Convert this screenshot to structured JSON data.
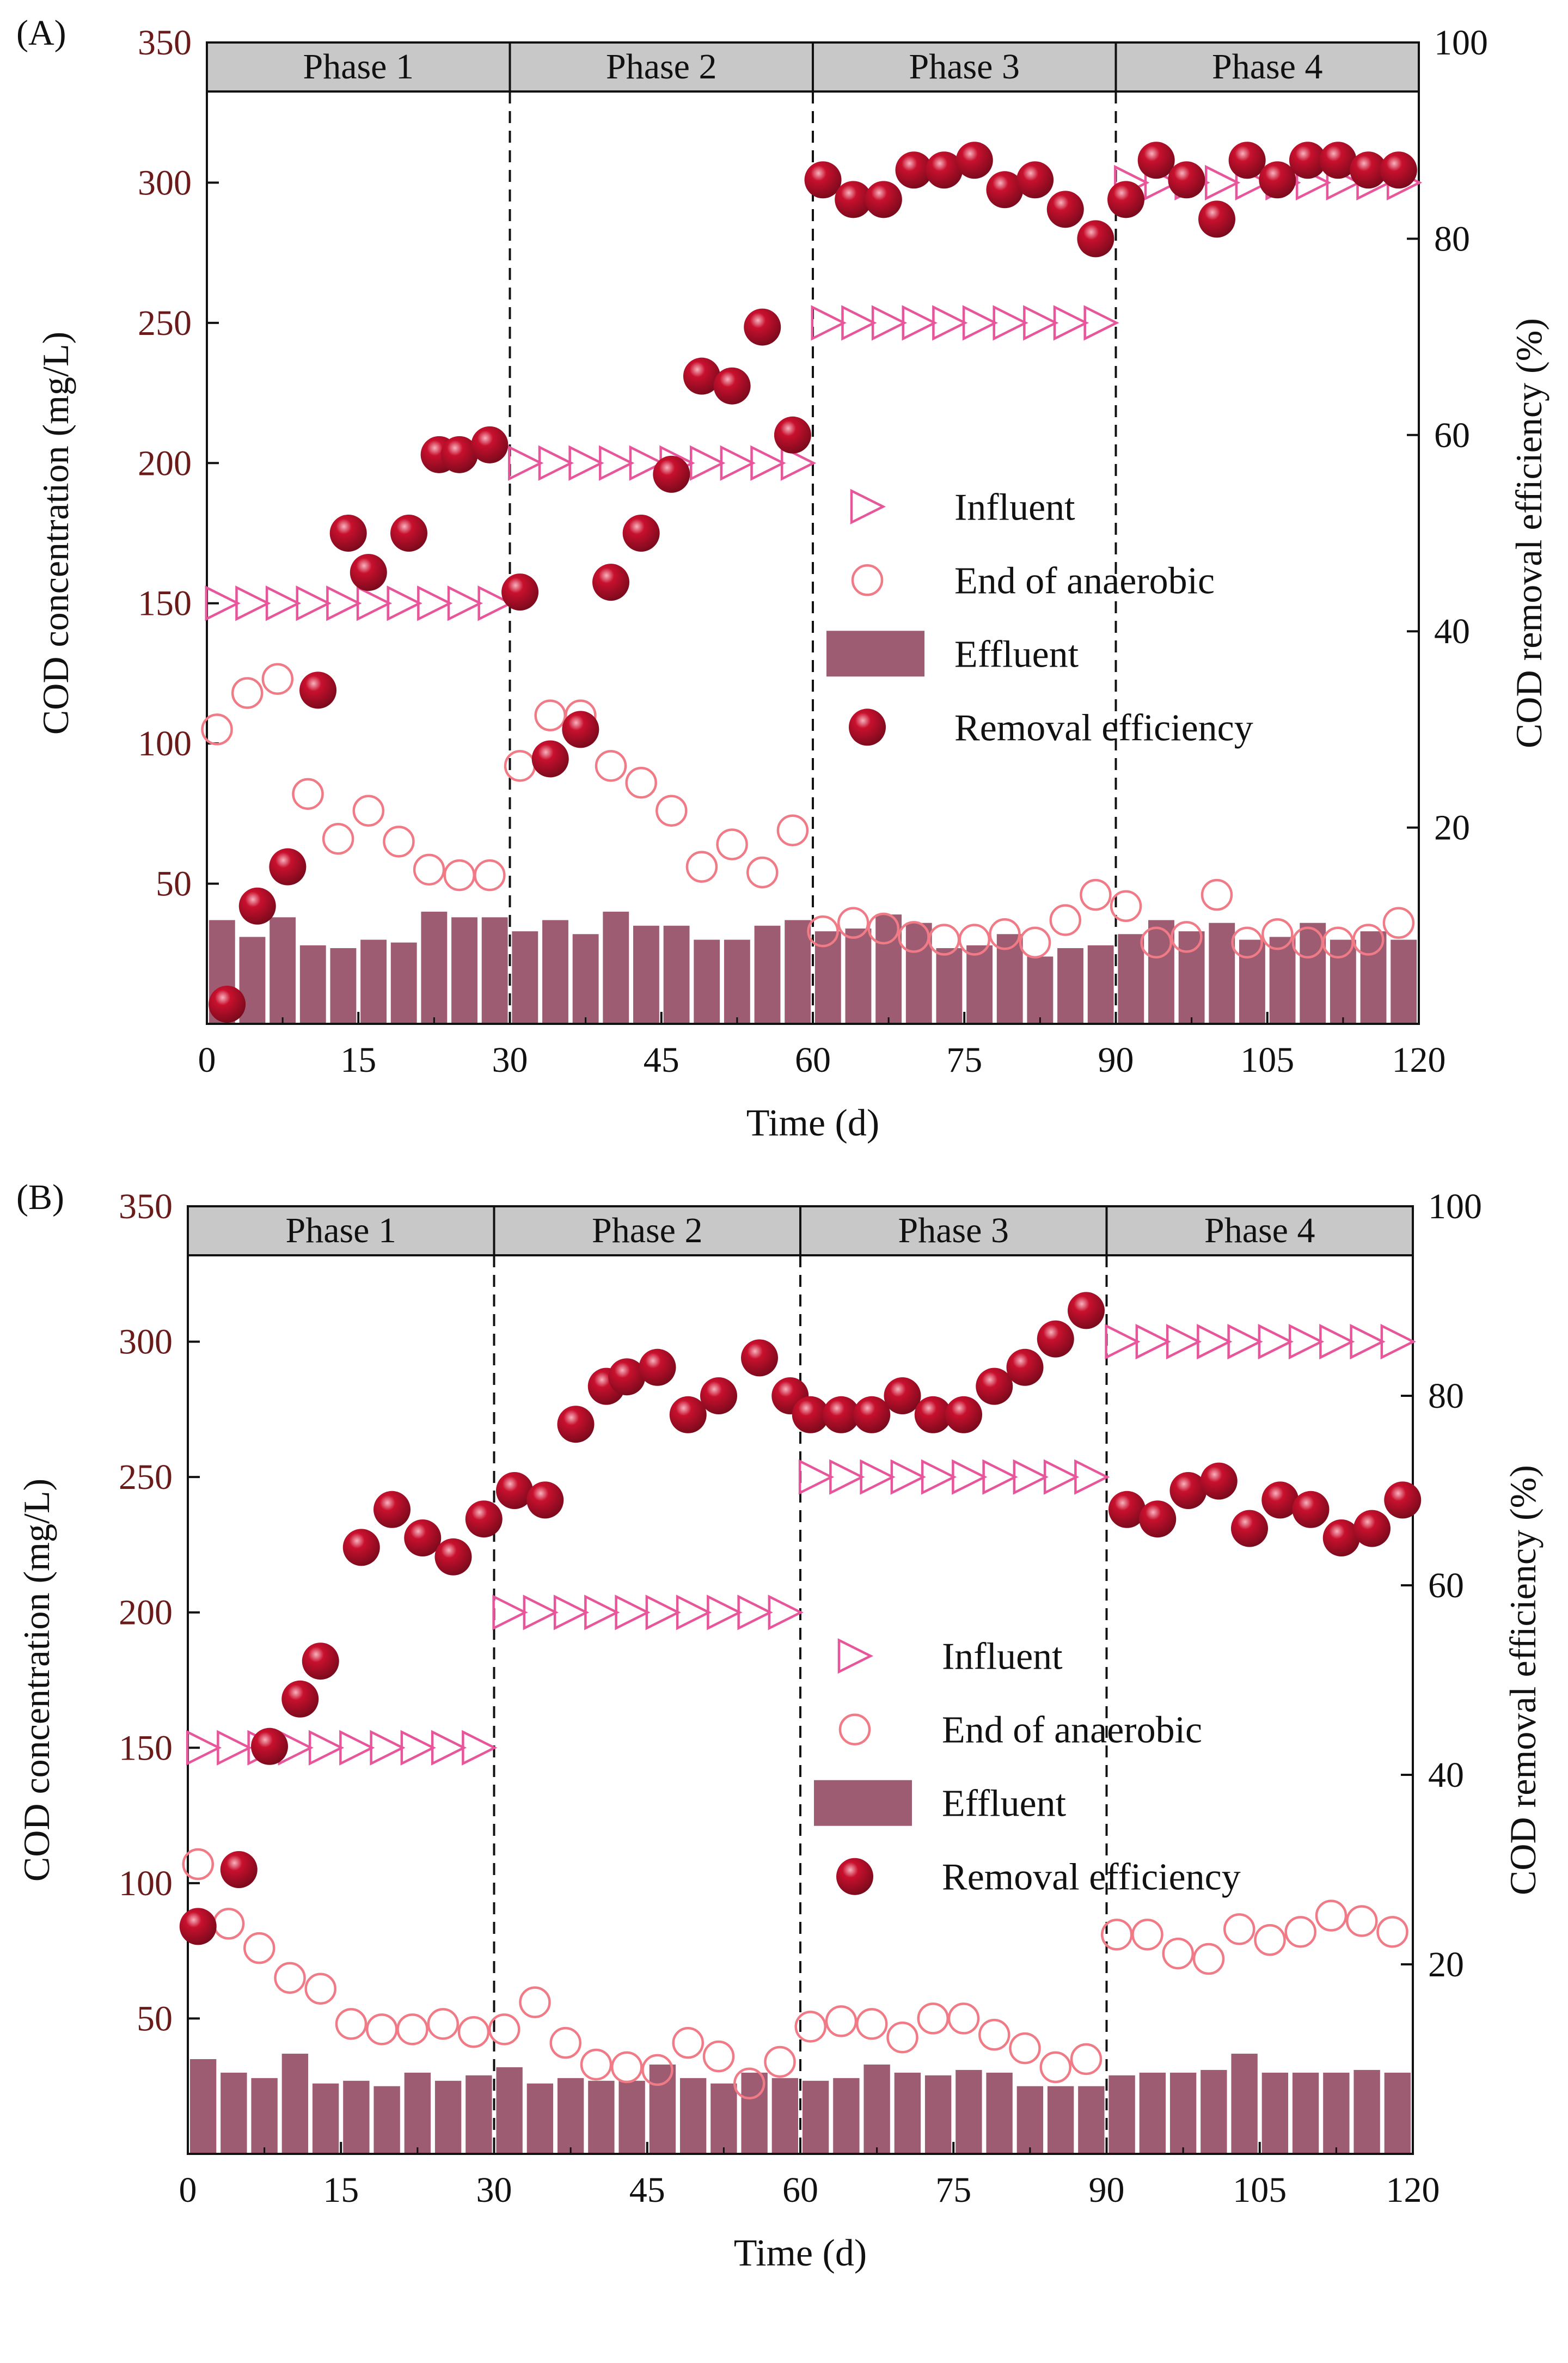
{
  "colors": {
    "influent": "#e8559a",
    "anaerobic": "#f07a86",
    "effluent": "#9e5c72",
    "removal": "#c8102e",
    "removal_highlight": "#f7b3be",
    "phase_bar": "#c8c8c8",
    "left_tick_text": "#6b1a1a"
  },
  "chart_data": [
    {
      "panel_label": "(A)",
      "type": "mixed",
      "xlabel": "Time (d)",
      "ylabel_left": "COD concentration (mg/L)",
      "ylabel_right": "COD removal efficiency (%)",
      "xlim": [
        0,
        120
      ],
      "ylim_left": [
        0,
        350
      ],
      "ylim_right": [
        0,
        100
      ],
      "xticks": [
        0,
        15,
        30,
        45,
        60,
        75,
        90,
        105,
        120
      ],
      "yticks_left": [
        50,
        100,
        150,
        200,
        250,
        300,
        350
      ],
      "yticks_right": [
        20,
        40,
        60,
        80,
        100
      ],
      "phases": [
        "Phase 1",
        "Phase 2",
        "Phase 3",
        "Phase 4"
      ],
      "phase_bounds": [
        0,
        30,
        60,
        90,
        120
      ],
      "legend": [
        "Influent",
        "End of anaerobic",
        "Effluent",
        "Removal efficiency"
      ],
      "series": [
        {
          "name": "Influent",
          "kind": "triangle",
          "x": [
            1.5,
            4.5,
            7.5,
            10.5,
            13.5,
            16.5,
            19.5,
            22.5,
            25.5,
            28.5,
            31.5,
            34.5,
            37.5,
            40.5,
            43.5,
            46.5,
            49.5,
            52.5,
            55.5,
            58.5,
            61.5,
            64.5,
            67.5,
            70.5,
            73.5,
            76.5,
            79.5,
            82.5,
            85.5,
            88.5,
            91.5,
            94.5,
            97.5,
            100.5,
            103.5,
            106.5,
            109.5,
            112.5,
            115.5,
            118.5
          ],
          "y": [
            150,
            150,
            150,
            150,
            150,
            150,
            150,
            150,
            150,
            150,
            200,
            200,
            200,
            200,
            200,
            200,
            200,
            200,
            200,
            200,
            250,
            250,
            250,
            250,
            250,
            250,
            250,
            250,
            250,
            250,
            300,
            300,
            300,
            300,
            300,
            300,
            300,
            300,
            300,
            300
          ]
        },
        {
          "name": "End of anaerobic",
          "kind": "circle",
          "x": [
            1,
            4,
            7,
            10,
            13,
            16,
            19,
            22,
            25,
            28,
            31,
            34,
            37,
            40,
            43,
            46,
            49,
            52,
            55,
            58,
            61,
            64,
            67,
            70,
            73,
            76,
            79,
            82,
            85,
            88,
            91,
            94,
            97,
            100,
            103,
            106,
            109,
            112,
            115,
            118
          ],
          "y": [
            105,
            118,
            123,
            82,
            66,
            76,
            65,
            55,
            53,
            53,
            92,
            110,
            110,
            92,
            86,
            76,
            56,
            64,
            54,
            69,
            33,
            36,
            34,
            31,
            30,
            30,
            32,
            29,
            37,
            46,
            42,
            29,
            31,
            46,
            29,
            32,
            29,
            29,
            30,
            36
          ]
        },
        {
          "name": "Effluent",
          "kind": "bar",
          "x": [
            1.5,
            4.5,
            7.5,
            10.5,
            13.5,
            16.5,
            19.5,
            22.5,
            25.5,
            28.5,
            31.5,
            34.5,
            37.5,
            40.5,
            43.5,
            46.5,
            49.5,
            52.5,
            55.5,
            58.5,
            61.5,
            64.5,
            67.5,
            70.5,
            73.5,
            76.5,
            79.5,
            82.5,
            85.5,
            88.5,
            91.5,
            94.5,
            97.5,
            100.5,
            103.5,
            106.5,
            109.5,
            112.5,
            115.5,
            118.5
          ],
          "y": [
            37,
            31,
            38,
            28,
            27,
            30,
            29,
            40,
            38,
            38,
            33,
            37,
            32,
            40,
            35,
            35,
            30,
            30,
            35,
            37,
            33,
            34,
            39,
            36,
            27,
            28,
            32,
            24,
            27,
            28,
            32,
            37,
            33,
            36,
            30,
            31,
            36,
            30,
            33,
            30
          ]
        },
        {
          "name": "Removal efficiency",
          "kind": "sphere",
          "x": [
            2,
            5,
            8,
            11,
            14,
            16,
            20,
            23,
            25,
            28,
            31,
            34,
            37,
            40,
            43,
            46,
            49,
            52,
            55,
            58,
            61,
            64,
            67,
            70,
            73,
            76,
            79,
            82,
            85,
            88,
            91,
            94,
            97,
            100,
            103,
            106,
            109,
            112,
            115,
            118
          ],
          "y": [
            2,
            12,
            16,
            34,
            50,
            46,
            50,
            58,
            58,
            59,
            44,
            27,
            30,
            45,
            50,
            56,
            66,
            65,
            71,
            60,
            86,
            84,
            84,
            87,
            87,
            88,
            85,
            86,
            83,
            80,
            84,
            88,
            86,
            82,
            88,
            86,
            88,
            88,
            87,
            87
          ]
        }
      ]
    },
    {
      "panel_label": "(B)",
      "type": "mixed",
      "xlabel": "Time (d)",
      "ylabel_left": "COD concentration (mg/L)",
      "ylabel_right": "COD removal efficiency (%)",
      "xlim": [
        0,
        120
      ],
      "ylim_left": [
        0,
        350
      ],
      "ylim_right": [
        0,
        100
      ],
      "xticks": [
        0,
        15,
        30,
        45,
        60,
        75,
        90,
        105,
        120
      ],
      "yticks_left": [
        50,
        100,
        150,
        200,
        250,
        300,
        350
      ],
      "yticks_right": [
        20,
        40,
        60,
        80,
        100
      ],
      "phases": [
        "Phase 1",
        "Phase 2",
        "Phase 3",
        "Phase 4"
      ],
      "phase_bounds": [
        0,
        30,
        60,
        90,
        120
      ],
      "legend": [
        "Influent",
        "End of anaerobic",
        "Effluent",
        "Removal efficiency"
      ],
      "series": [
        {
          "name": "Influent",
          "kind": "triangle",
          "x": [
            1.5,
            4.5,
            7.5,
            10.5,
            13.5,
            16.5,
            19.5,
            22.5,
            25.5,
            28.5,
            31.5,
            34.5,
            37.5,
            40.5,
            43.5,
            46.5,
            49.5,
            52.5,
            55.5,
            58.5,
            61.5,
            64.5,
            67.5,
            70.5,
            73.5,
            76.5,
            79.5,
            82.5,
            85.5,
            88.5,
            91.5,
            94.5,
            97.5,
            100.5,
            103.5,
            106.5,
            109.5,
            112.5,
            115.5,
            118.5
          ],
          "y": [
            150,
            150,
            150,
            150,
            150,
            150,
            150,
            150,
            150,
            150,
            200,
            200,
            200,
            200,
            200,
            200,
            200,
            200,
            200,
            200,
            250,
            250,
            250,
            250,
            250,
            250,
            250,
            250,
            250,
            250,
            300,
            300,
            300,
            300,
            300,
            300,
            300,
            300,
            300,
            300
          ]
        },
        {
          "name": "End of anaerobic",
          "kind": "circle",
          "x": [
            1,
            4,
            7,
            10,
            13,
            16,
            19,
            22,
            25,
            28,
            31,
            34,
            37,
            40,
            43,
            46,
            49,
            52,
            55,
            58,
            61,
            64,
            67,
            70,
            73,
            76,
            79,
            82,
            85,
            88,
            91,
            94,
            97,
            100,
            103,
            106,
            109,
            112,
            115,
            118
          ],
          "y": [
            107,
            85,
            76,
            65,
            61,
            48,
            46,
            46,
            48,
            45,
            46,
            56,
            41,
            33,
            32,
            31,
            41,
            36,
            26,
            34,
            47,
            49,
            48,
            43,
            50,
            50,
            44,
            39,
            32,
            35,
            81,
            81,
            74,
            72,
            83,
            79,
            82,
            88,
            86,
            82
          ]
        },
        {
          "name": "Effluent",
          "kind": "bar",
          "x": [
            1.5,
            4.5,
            7.5,
            10.5,
            13.5,
            16.5,
            19.5,
            22.5,
            25.5,
            28.5,
            31.5,
            34.5,
            37.5,
            40.5,
            43.5,
            46.5,
            49.5,
            52.5,
            55.5,
            58.5,
            61.5,
            64.5,
            67.5,
            70.5,
            73.5,
            76.5,
            79.5,
            82.5,
            85.5,
            88.5,
            91.5,
            94.5,
            97.5,
            100.5,
            103.5,
            106.5,
            109.5,
            112.5,
            115.5,
            118.5
          ],
          "y": [
            35,
            30,
            28,
            37,
            26,
            27,
            25,
            30,
            27,
            29,
            32,
            26,
            28,
            27,
            27,
            33,
            28,
            26,
            30,
            28,
            27,
            28,
            33,
            30,
            29,
            31,
            30,
            25,
            25,
            25,
            29,
            30,
            30,
            31,
            37,
            30,
            30,
            30,
            31,
            30
          ]
        },
        {
          "name": "Removal efficiency",
          "kind": "sphere",
          "x": [
            1,
            5,
            8,
            11,
            13,
            17,
            20,
            23,
            26,
            29,
            32,
            35,
            38,
            41,
            43,
            46,
            49,
            52,
            56,
            59,
            61,
            64,
            67,
            70,
            73,
            76,
            79,
            82,
            85,
            88,
            92,
            95,
            98,
            101,
            104,
            107,
            110,
            113,
            116,
            119
          ],
          "y": [
            24,
            30,
            43,
            48,
            52,
            64,
            68,
            65,
            63,
            67,
            70,
            69,
            77,
            81,
            82,
            83,
            78,
            80,
            84,
            80,
            78,
            78,
            78,
            80,
            78,
            78,
            81,
            83,
            86,
            89,
            68,
            67,
            70,
            71,
            66,
            69,
            68,
            65,
            66,
            69
          ]
        }
      ]
    }
  ]
}
